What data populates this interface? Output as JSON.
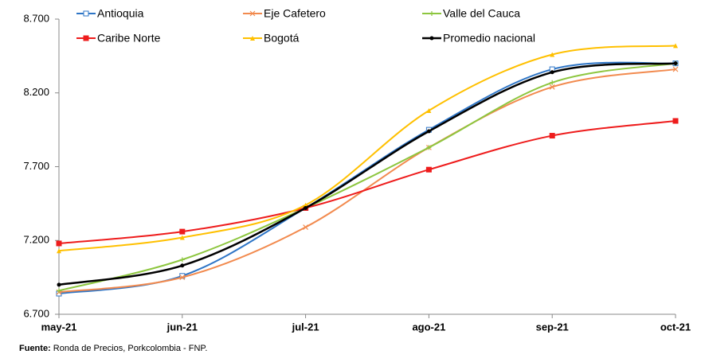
{
  "chart_data": {
    "type": "line",
    "categories": [
      "may-21",
      "jun-21",
      "jul-21",
      "ago-21",
      "sep-21",
      "oct-21"
    ],
    "series": [
      {
        "name": "Antioquia",
        "color": "#2e75c6",
        "marker": "square",
        "values": [
          6840,
          6960,
          7420,
          7950,
          8360,
          8400
        ]
      },
      {
        "name": "Eje Cafetero",
        "color": "#f28a4e",
        "marker": "x",
        "values": [
          6850,
          6950,
          7290,
          7830,
          8240,
          8360
        ]
      },
      {
        "name": "Valle del Cauca",
        "color": "#8dc63f",
        "marker": "plus",
        "values": [
          6860,
          7070,
          7420,
          7830,
          8270,
          8400
        ]
      },
      {
        "name": "Caribe Norte",
        "color": "#ee1c1c",
        "marker": "square",
        "values": [
          7180,
          7260,
          7420,
          7680,
          7910,
          8010
        ]
      },
      {
        "name": "Bogotá",
        "color": "#ffc000",
        "marker": "triangle",
        "values": [
          7130,
          7220,
          7440,
          8080,
          8460,
          8520
        ]
      },
      {
        "name": "Promedio nacional",
        "color": "#000000",
        "marker": "circle",
        "values": [
          6900,
          7030,
          7420,
          7940,
          8340,
          8400
        ]
      }
    ],
    "ylim": [
      6700,
      8700
    ],
    "yticks": [
      {
        "value": 6700,
        "label": "6.700"
      },
      {
        "value": 7200,
        "label": "7.200"
      },
      {
        "value": 7700,
        "label": "7.700"
      },
      {
        "value": 8200,
        "label": "8.200"
      },
      {
        "value": 8700,
        "label": "8.700"
      }
    ],
    "legend": "top",
    "source_label": "Fuente:",
    "source_text": "Ronda de Precios, Porkcolombia  - FNP."
  }
}
